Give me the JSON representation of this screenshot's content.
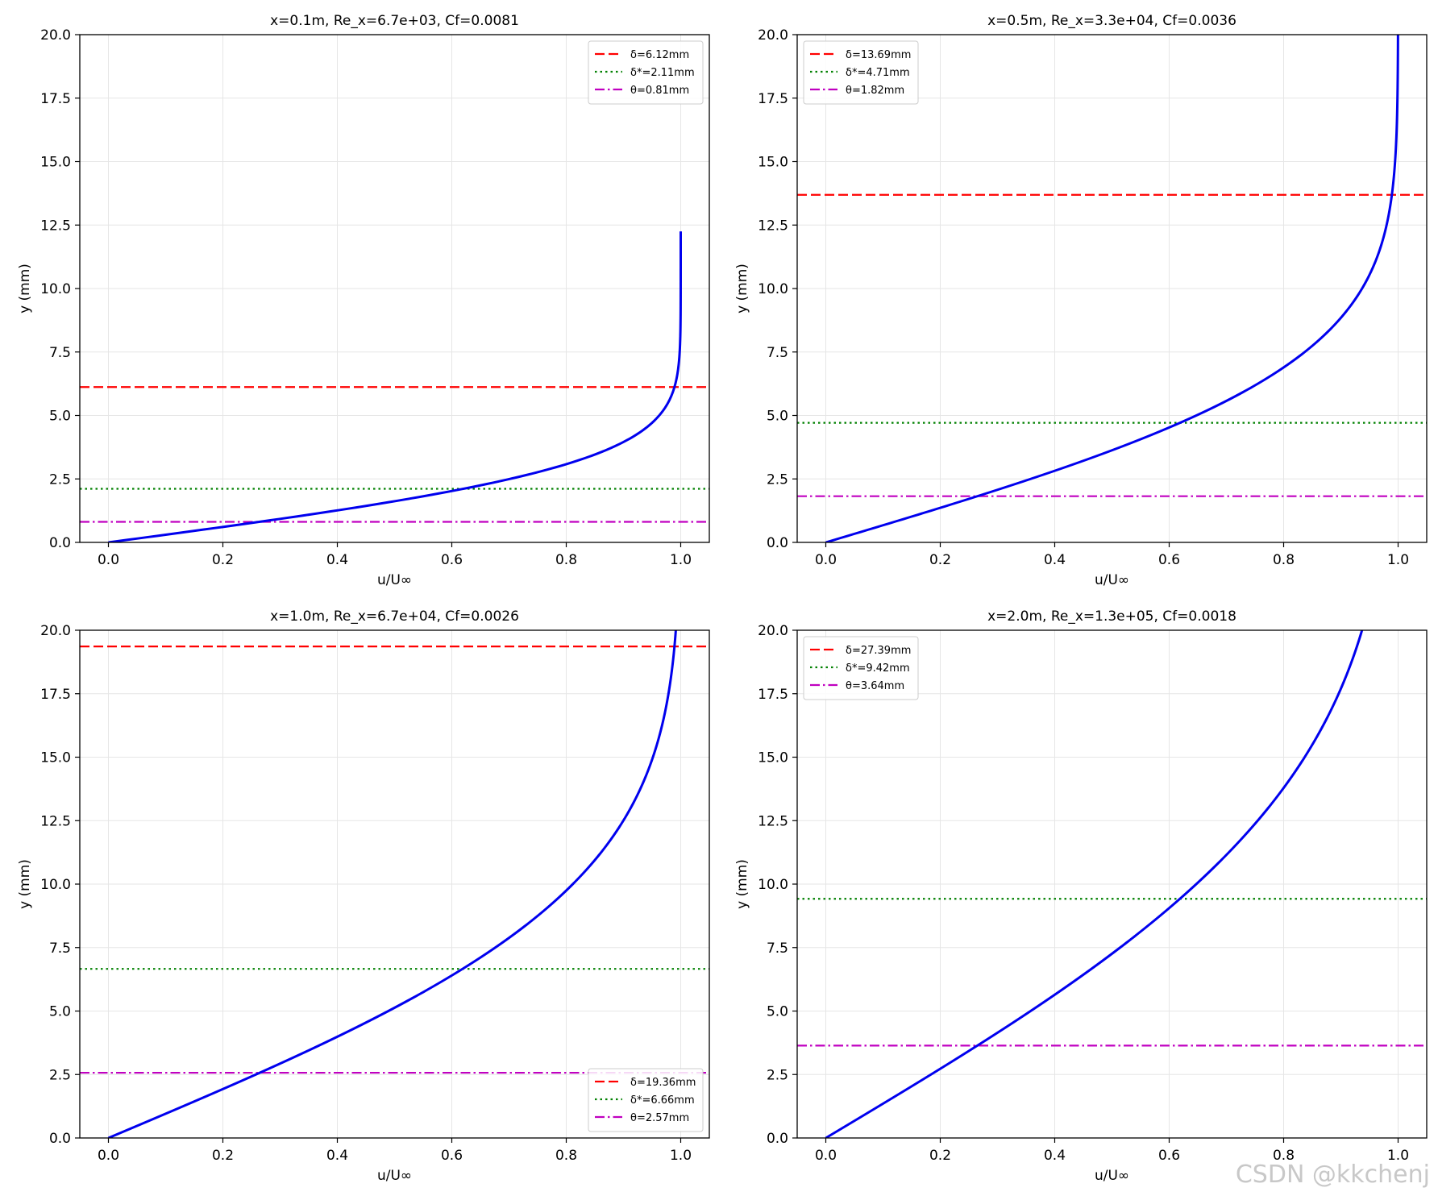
{
  "watermark": "CSDN @kkchenj",
  "chart_data": [
    {
      "type": "line",
      "title": "x=0.1m, Re_x=6.7e+03, Cf=0.0081",
      "xlabel": "u/U∞",
      "ylabel": "y (mm)",
      "xlim": [
        -0.05,
        1.05
      ],
      "ylim": [
        0,
        20
      ],
      "xticks": [
        "0.0",
        "0.2",
        "0.4",
        "0.6",
        "0.8",
        "1.0"
      ],
      "yticks": [
        "0.0",
        "2.5",
        "5.0",
        "7.5",
        "10.0",
        "12.5",
        "15.0",
        "17.5",
        "20.0"
      ],
      "grid": true,
      "legend_position": "top-right",
      "profile": {
        "delta_scale": 6.12,
        "y_max": 12.25,
        "color": "#0000ee"
      },
      "series": [
        {
          "name": "δ=6.12mm",
          "y": 6.12,
          "color": "#ff0000",
          "style": "dashed"
        },
        {
          "name": "δ*=2.11mm",
          "y": 2.11,
          "color": "#008000",
          "style": "dotted"
        },
        {
          "name": "θ=0.81mm",
          "y": 0.81,
          "color": "#c000c0",
          "style": "dashdot"
        }
      ]
    },
    {
      "type": "line",
      "title": "x=0.5m, Re_x=3.3e+04, Cf=0.0036",
      "xlabel": "u/U∞",
      "ylabel": "y (mm)",
      "xlim": [
        -0.05,
        1.05
      ],
      "ylim": [
        0,
        20
      ],
      "xticks": [
        "0.0",
        "0.2",
        "0.4",
        "0.6",
        "0.8",
        "1.0"
      ],
      "yticks": [
        "0.0",
        "2.5",
        "5.0",
        "7.5",
        "10.0",
        "12.5",
        "15.0",
        "17.5",
        "20.0"
      ],
      "grid": true,
      "legend_position": "top-left",
      "profile": {
        "delta_scale": 13.69,
        "y_max": 20,
        "color": "#0000ee"
      },
      "series": [
        {
          "name": "δ=13.69mm",
          "y": 13.69,
          "color": "#ff0000",
          "style": "dashed"
        },
        {
          "name": "δ*=4.71mm",
          "y": 4.71,
          "color": "#008000",
          "style": "dotted"
        },
        {
          "name": "θ=1.82mm",
          "y": 1.82,
          "color": "#c000c0",
          "style": "dashdot"
        }
      ]
    },
    {
      "type": "line",
      "title": "x=1.0m, Re_x=6.7e+04, Cf=0.0026",
      "xlabel": "u/U∞",
      "ylabel": "y (mm)",
      "xlim": [
        -0.05,
        1.05
      ],
      "ylim": [
        0,
        20
      ],
      "xticks": [
        "0.0",
        "0.2",
        "0.4",
        "0.6",
        "0.8",
        "1.0"
      ],
      "yticks": [
        "0.0",
        "2.5",
        "5.0",
        "7.5",
        "10.0",
        "12.5",
        "15.0",
        "17.5",
        "20.0"
      ],
      "grid": true,
      "legend_position": "bottom-right",
      "profile": {
        "delta_scale": 19.36,
        "y_max": 20,
        "color": "#0000ee"
      },
      "series": [
        {
          "name": "δ=19.36mm",
          "y": 19.36,
          "color": "#ff0000",
          "style": "dashed"
        },
        {
          "name": "δ*=6.66mm",
          "y": 6.66,
          "color": "#008000",
          "style": "dotted"
        },
        {
          "name": "θ=2.57mm",
          "y": 2.57,
          "color": "#c000c0",
          "style": "dashdot"
        }
      ]
    },
    {
      "type": "line",
      "title": "x=2.0m, Re_x=1.3e+05, Cf=0.0018",
      "xlabel": "u/U∞",
      "ylabel": "y (mm)",
      "xlim": [
        -0.05,
        1.05
      ],
      "ylim": [
        0,
        20
      ],
      "xticks": [
        "0.0",
        "0.2",
        "0.4",
        "0.6",
        "0.8",
        "1.0"
      ],
      "yticks": [
        "0.0",
        "2.5",
        "5.0",
        "7.5",
        "10.0",
        "12.5",
        "15.0",
        "17.5",
        "20.0"
      ],
      "grid": true,
      "legend_position": "top-left",
      "profile": {
        "delta_scale": 27.39,
        "y_max": 20,
        "color": "#0000ee"
      },
      "series": [
        {
          "name": "δ=27.39mm",
          "y": 27.39,
          "color": "#ff0000",
          "style": "dashed"
        },
        {
          "name": "δ*=9.42mm",
          "y": 9.42,
          "color": "#008000",
          "style": "dotted"
        },
        {
          "name": "θ=3.64mm",
          "y": 3.64,
          "color": "#c000c0",
          "style": "dashdot"
        }
      ]
    }
  ]
}
